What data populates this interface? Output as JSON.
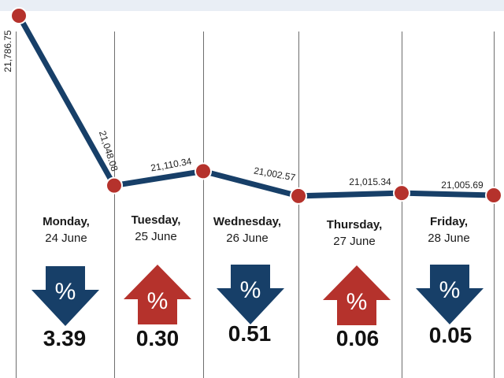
{
  "chart_data": {
    "type": "line",
    "points": [
      {
        "x": "",
        "y": 21786.75,
        "label": "21,786.75"
      },
      {
        "x": "Monday",
        "y": 21048.08,
        "label": "21,048.08"
      },
      {
        "x": "Tuesday",
        "y": 21110.34,
        "label": "21,110.34"
      },
      {
        "x": "Wednesday",
        "y": 21002.57,
        "label": "21,002.57"
      },
      {
        "x": "Thursday",
        "y": 21015.34,
        "label": "21,015.34"
      },
      {
        "x": "Friday",
        "y": 21005.69,
        "label": "21,005.69"
      }
    ],
    "days": [
      {
        "name": "Monday,",
        "date": "24 June",
        "direction": "down",
        "change": "3.39"
      },
      {
        "name": "Tuesday,",
        "date": "25 June",
        "direction": "up",
        "change": "0.30"
      },
      {
        "name": "Wednesday,",
        "date": "26 June",
        "direction": "down",
        "change": "0.51"
      },
      {
        "name": "Thursday,",
        "date": "27 June",
        "direction": "up",
        "change": "0.06"
      },
      {
        "name": "Friday,",
        "date": "28 June",
        "direction": "down",
        "change": "0.05"
      }
    ],
    "arrow_symbol": "%",
    "colors": {
      "line": "#173f68",
      "marker": "#b5322c",
      "down_arrow": "#173f68",
      "up_arrow": "#b5322c"
    }
  }
}
